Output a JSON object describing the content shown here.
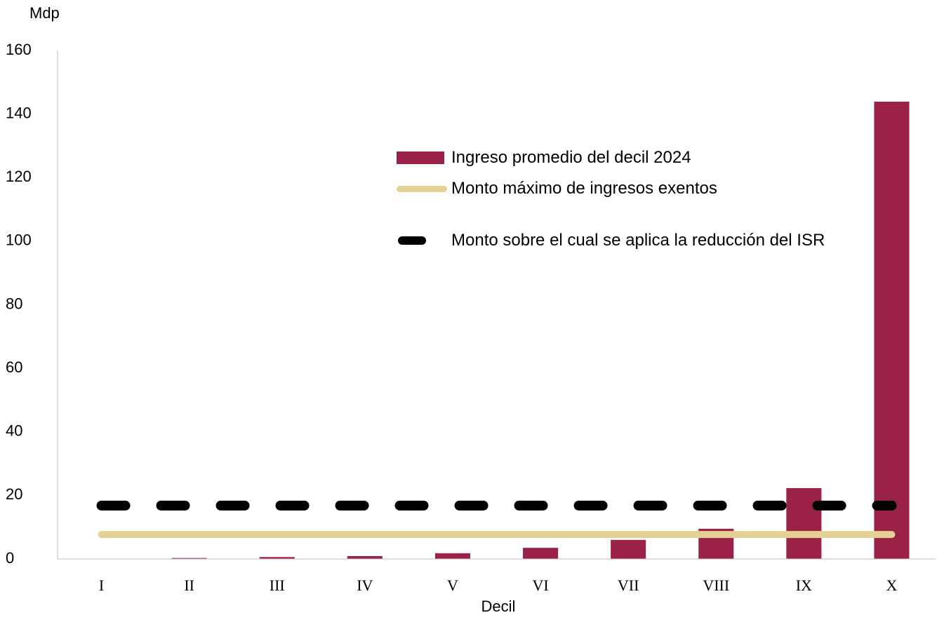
{
  "chart_data": {
    "type": "bar",
    "y_axis_label": "Mdp",
    "x_axis_label": "Decil",
    "categories": [
      "I",
      "II",
      "III",
      "IV",
      "V",
      "VI",
      "VII",
      "VIII",
      "IX",
      "X"
    ],
    "series": [
      {
        "name": "Ingreso promedio del decil 2024",
        "type": "bar",
        "color": "#9b2247",
        "values": [
          0.1,
          0.3,
          0.6,
          0.9,
          1.8,
          3.5,
          6.0,
          9.5,
          22.3,
          143.9
        ]
      },
      {
        "name": "Monto máximo de ingresos exentos",
        "type": "line",
        "color": "#e6d194",
        "values": [
          7.7,
          7.7,
          7.7,
          7.7,
          7.7,
          7.7,
          7.7,
          7.7,
          7.7,
          7.7
        ]
      },
      {
        "name": "Monto sobre el cual se aplica la reducción del ISR",
        "type": "line",
        "dashed": true,
        "color": "#000000",
        "values": [
          16.8,
          16.8,
          16.8,
          16.8,
          16.8,
          16.8,
          16.8,
          16.8,
          16.8,
          16.8
        ]
      }
    ],
    "ylim": [
      0,
      160
    ],
    "yticks": [
      0,
      20,
      40,
      60,
      80,
      100,
      120,
      140,
      160
    ],
    "grid": false
  }
}
